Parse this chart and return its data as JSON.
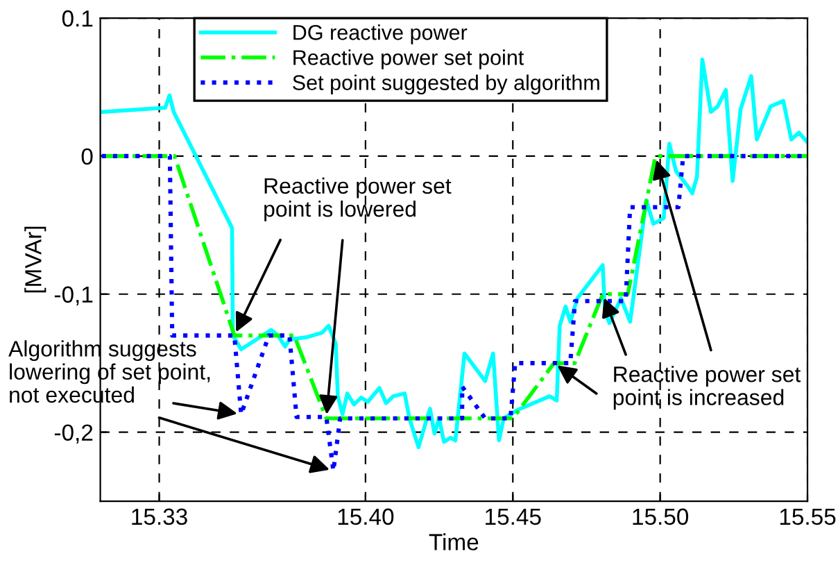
{
  "chart_data": {
    "type": "line",
    "xlabel": "Time",
    "ylabel": "[MVAr]",
    "xlim": [
      15.31,
      15.55
    ],
    "xticks": [
      15.33,
      {
        "value": 15.4,
        "label": "15.40"
      },
      15.45,
      {
        "value": 15.5,
        "label": "15.50"
      },
      15.55
    ],
    "ylim": [
      -0.25,
      0.1
    ],
    "yticks": [
      {
        "value": 0.1,
        "label": "0.1"
      },
      0,
      {
        "value": -0.1,
        "label": "-0,1"
      },
      {
        "value": -0.2,
        "label": "-0,2"
      }
    ],
    "grid": true,
    "legend": "top",
    "series": [
      {
        "name": "DG reactive power",
        "color": "#00ffff",
        "line_style": "solid",
        "x": [
          15.3105,
          15.332,
          15.3335,
          15.3349,
          15.3547,
          15.355,
          15.3578,
          15.368,
          15.3703,
          15.3727,
          15.3742,
          15.3805,
          15.3852,
          15.3875,
          15.3899,
          15.3906,
          15.3922,
          15.3938,
          15.3961,
          15.3985,
          15.4008,
          15.4047,
          15.407,
          15.4094,
          15.4133,
          15.4149,
          15.418,
          15.4203,
          15.4219,
          15.4234,
          15.425,
          15.4266,
          15.4289,
          15.4305,
          15.4336,
          15.4406,
          15.4433,
          15.4453,
          15.4469,
          15.4515,
          15.4625,
          15.4649,
          15.4659,
          15.4679,
          15.4695,
          15.4719,
          15.4805,
          15.4813,
          15.4828,
          15.4867,
          15.4898,
          15.4953,
          15.4977,
          15.5012,
          15.5031,
          15.5054,
          15.5094,
          15.5109,
          15.5125,
          15.5143,
          15.5172,
          15.5195,
          15.5223,
          15.5246,
          15.5273,
          15.5309,
          15.5328,
          15.5375,
          15.5418,
          15.5445,
          15.5471,
          15.55
        ],
        "values": [
          0.032,
          0.035,
          0.044,
          0.032,
          -0.052,
          -0.13,
          -0.14,
          -0.126,
          -0.13,
          -0.138,
          -0.133,
          -0.131,
          -0.128,
          -0.123,
          -0.136,
          -0.174,
          -0.187,
          -0.172,
          -0.18,
          -0.175,
          -0.178,
          -0.168,
          -0.179,
          -0.174,
          -0.172,
          -0.19,
          -0.211,
          -0.194,
          -0.183,
          -0.201,
          -0.19,
          -0.207,
          -0.204,
          -0.206,
          -0.143,
          -0.163,
          -0.143,
          -0.206,
          -0.19,
          -0.184,
          -0.174,
          -0.177,
          -0.123,
          -0.109,
          -0.12,
          -0.103,
          -0.079,
          -0.113,
          -0.121,
          -0.103,
          -0.12,
          -0.032,
          -0.049,
          -0.045,
          0.009,
          -0.011,
          -0.022,
          -0.027,
          -0.015,
          0.07,
          0.032,
          0.036,
          0.048,
          -0.018,
          0.034,
          0.058,
          0.012,
          0.036,
          0.04,
          0.012,
          0.017,
          0.01
        ]
      },
      {
        "name": "Reactive power set point",
        "color": "#00ff00",
        "line_style": "dashdot",
        "x": [
          15.3105,
          15.3352,
          15.3555,
          15.3758,
          15.3867,
          15.45,
          15.464,
          15.471,
          15.4805,
          15.489,
          15.4984,
          15.55
        ],
        "values": [
          0,
          0,
          -0.13,
          -0.13,
          -0.19,
          -0.19,
          -0.15,
          -0.15,
          -0.1,
          -0.1,
          0,
          0
        ]
      },
      {
        "name": "Set point suggested by algorithm",
        "color": "#0000ff",
        "line_style": "dotted",
        "x": [
          15.3105,
          15.3336,
          15.3344,
          15.3555,
          15.3578,
          15.3672,
          15.3742,
          15.3766,
          15.3867,
          15.3891,
          15.3914,
          15.4328,
          15.4328,
          15.4406,
          15.4492,
          15.4508,
          15.4695,
          15.4711,
          15.4883,
          15.4898,
          15.5062,
          15.5078,
          15.55
        ],
        "values": [
          0,
          0,
          -0.13,
          -0.13,
          -0.187,
          -0.13,
          -0.13,
          -0.189,
          -0.189,
          -0.228,
          -0.19,
          -0.19,
          -0.167,
          -0.19,
          -0.19,
          -0.15,
          -0.15,
          -0.105,
          -0.105,
          -0.037,
          -0.037,
          0,
          0
        ]
      }
    ],
    "annotations": [
      {
        "text": "Reactive power set\npoint is lowered",
        "x": 15.3555,
        "y": -0.13
      },
      {
        "text": "Algorithm suggests\nlowering of set point,\nnot executed",
        "x": 15.3578,
        "y": -0.187
      },
      {
        "text": "Reactive power set\npoint is increased",
        "x": 15.464,
        "y": -0.15
      }
    ]
  }
}
